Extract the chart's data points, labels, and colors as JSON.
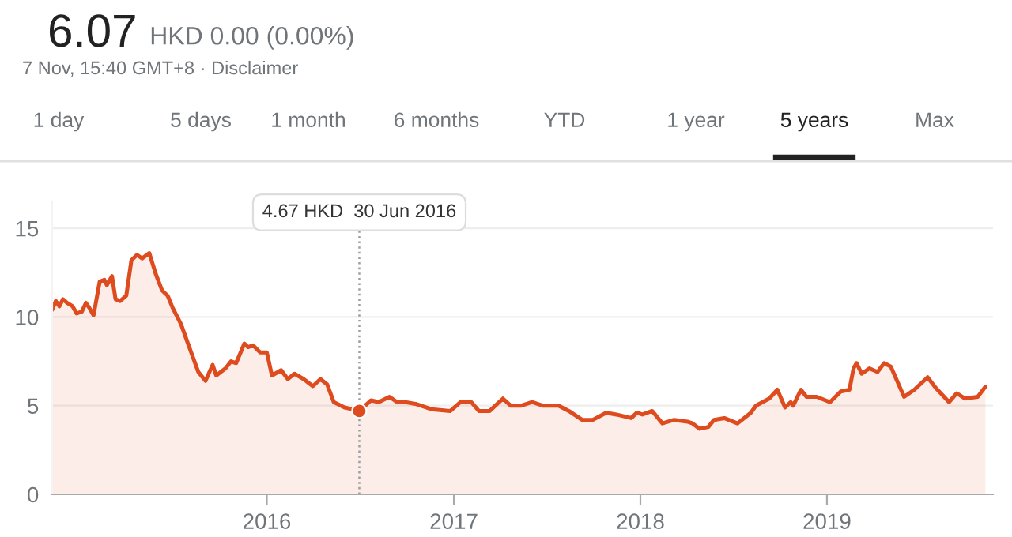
{
  "chart_data": {
    "type": "area",
    "title": "6.07",
    "subtitle": "HKD 0.00 (0.00%)",
    "annotations": [
      "7 Nov, 15:40 GMT+8 · Disclaimer",
      "1 day",
      "5 days",
      "1 month",
      "6 months",
      "YTD",
      "1 year",
      "5 years",
      "Max",
      "4.67 HKD  30 Jun 2016"
    ],
    "x": [
      "2014-11-07",
      "2014-11-14",
      "2014-11-21",
      "2014-11-28",
      "2014-12-06",
      "2014-12-17",
      "2014-12-25",
      "2015-01-04",
      "2015-01-12",
      "2015-01-19",
      "2015-01-27",
      "2015-02-08",
      "2015-02-17",
      "2015-02-22",
      "2015-03-04",
      "2015-03-11",
      "2015-03-20",
      "2015-04-01",
      "2015-04-11",
      "2015-04-22",
      "2015-05-02",
      "2015-05-16",
      "2015-05-29",
      "2015-06-10",
      "2015-06-21",
      "2015-07-01",
      "2015-07-17",
      "2015-08-01",
      "2015-08-20",
      "2015-09-03",
      "2015-09-17",
      "2015-09-24",
      "2015-10-12",
      "2015-10-23",
      "2015-11-02",
      "2015-11-18",
      "2015-11-25",
      "2015-12-05",
      "2015-12-19",
      "2016-01-01",
      "2016-01-11",
      "2016-01-29",
      "2016-02-11",
      "2016-02-24",
      "2016-03-13",
      "2016-03-31",
      "2016-04-15",
      "2016-04-28",
      "2016-05-11",
      "2016-06-01",
      "2016-06-16",
      "2016-06-30",
      "2016-07-23",
      "2016-08-07",
      "2016-08-28",
      "2016-09-12",
      "2016-09-28",
      "2016-10-18",
      "2016-11-18",
      "2016-12-25",
      "2017-01-14",
      "2017-02-04",
      "2017-02-19",
      "2017-03-12",
      "2017-04-07",
      "2017-04-22",
      "2017-05-13",
      "2017-06-03",
      "2017-06-24",
      "2017-07-25",
      "2017-08-14",
      "2017-09-09",
      "2017-09-30",
      "2017-10-26",
      "2017-11-15",
      "2017-12-14",
      "2017-12-25",
      "2018-01-05",
      "2018-01-24",
      "2018-02-13",
      "2018-03-08",
      "2018-04-03",
      "2018-04-13",
      "2018-04-27",
      "2018-05-14",
      "2018-05-25",
      "2018-06-14",
      "2018-07-10",
      "2018-08-05",
      "2018-08-15",
      "2018-09-10",
      "2018-09-26",
      "2018-10-11",
      "2018-10-22",
      "2018-10-27",
      "2018-11-11",
      "2018-11-22",
      "2018-12-12",
      "2019-01-07",
      "2019-01-28",
      "2019-02-14",
      "2019-02-22",
      "2019-02-28",
      "2019-03-10",
      "2019-03-25",
      "2019-04-10",
      "2019-04-23",
      "2019-05-06",
      "2019-06-01",
      "2019-06-21",
      "2019-07-17",
      "2019-08-02",
      "2019-08-28",
      "2019-09-12",
      "2019-09-28",
      "2019-10-23",
      "2019-11-07"
    ],
    "series": [
      {
        "color": "#dd4b1f",
        "values": [
          10.4,
          10.9,
          10.6,
          11.0,
          10.8,
          10.6,
          10.2,
          10.3,
          10.8,
          10.5,
          10.1,
          12.0,
          12.1,
          11.8,
          12.3,
          11.0,
          10.9,
          11.2,
          13.2,
          13.5,
          13.3,
          13.6,
          12.4,
          11.5,
          11.2,
          10.5,
          9.6,
          8.4,
          6.9,
          6.4,
          7.3,
          6.7,
          7.1,
          7.5,
          7.4,
          8.5,
          8.3,
          8.4,
          8.0,
          8.0,
          6.7,
          7.0,
          6.5,
          6.8,
          6.5,
          6.1,
          6.5,
          6.2,
          5.2,
          4.9,
          4.8,
          4.7,
          5.3,
          5.2,
          5.5,
          5.2,
          5.2,
          5.1,
          4.8,
          4.7,
          5.2,
          5.2,
          4.7,
          4.7,
          5.4,
          5.0,
          5.0,
          5.2,
          5.0,
          5.0,
          4.7,
          4.2,
          4.2,
          4.6,
          4.5,
          4.3,
          4.6,
          4.5,
          4.7,
          4.0,
          4.2,
          4.1,
          4.0,
          3.7,
          3.8,
          4.2,
          4.3,
          4.0,
          4.6,
          5.0,
          5.4,
          5.9,
          4.9,
          5.2,
          5.0,
          5.9,
          5.5,
          5.5,
          5.2,
          5.8,
          5.9,
          7.1,
          7.4,
          6.8,
          7.1,
          6.9,
          7.4,
          7.2,
          5.5,
          5.9,
          6.6,
          6.0,
          5.2,
          5.7,
          5.4,
          5.5,
          6.07
        ]
      }
    ],
    "xlim": [
      "2014-11-07",
      "2019-11-22"
    ],
    "xticks": [
      {
        "value": "2016-01-01",
        "label": "2016"
      },
      {
        "value": "2017-01-01",
        "label": "2017"
      },
      {
        "value": "2018-01-01",
        "label": "2018"
      },
      {
        "value": "2019-01-01",
        "label": "2019"
      }
    ],
    "ylim": [
      0,
      16.5
    ],
    "yticks": [
      0,
      5,
      10,
      15
    ],
    "grid": "y",
    "ref_lines": [
      {
        "axis": "x",
        "value": "2016-06-30",
        "label": null,
        "color": "#9e9e9e",
        "line_style": "dotted"
      }
    ],
    "legend": false
  }
}
